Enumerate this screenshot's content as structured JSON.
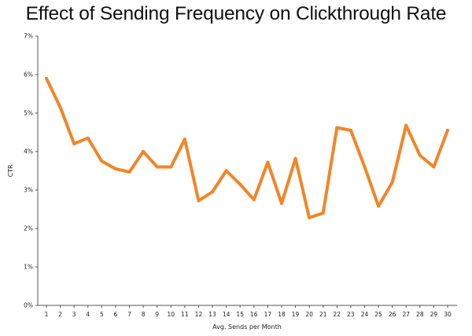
{
  "chart_data": {
    "type": "line",
    "title": "Effect of Sending Frequency on Clickthrough Rate",
    "xlabel": "Avg. Sends per Month",
    "ylabel": "CTR",
    "x": [
      1,
      2,
      3,
      4,
      5,
      6,
      7,
      8,
      9,
      10,
      11,
      12,
      13,
      14,
      15,
      16,
      17,
      18,
      19,
      20,
      21,
      22,
      23,
      24,
      25,
      26,
      27,
      28,
      29,
      30
    ],
    "series": [
      {
        "values": [
          5.9,
          5.15,
          4.2,
          4.35,
          3.75,
          3.55,
          3.47,
          4.0,
          3.6,
          3.6,
          4.32,
          2.72,
          2.95,
          3.5,
          3.15,
          2.75,
          3.72,
          2.65,
          3.82,
          2.28,
          2.4,
          4.62,
          4.55,
          3.6,
          2.58,
          3.2,
          4.68,
          3.9,
          3.6,
          4.55
        ],
        "color": "#f28528"
      }
    ],
    "y_ticks": [
      "0%",
      "1%",
      "2%",
      "3%",
      "4%",
      "5%",
      "6%",
      "7%"
    ],
    "ylim": [
      0,
      7
    ],
    "xlim": [
      1,
      30
    ],
    "grid": false,
    "legend": "none"
  }
}
